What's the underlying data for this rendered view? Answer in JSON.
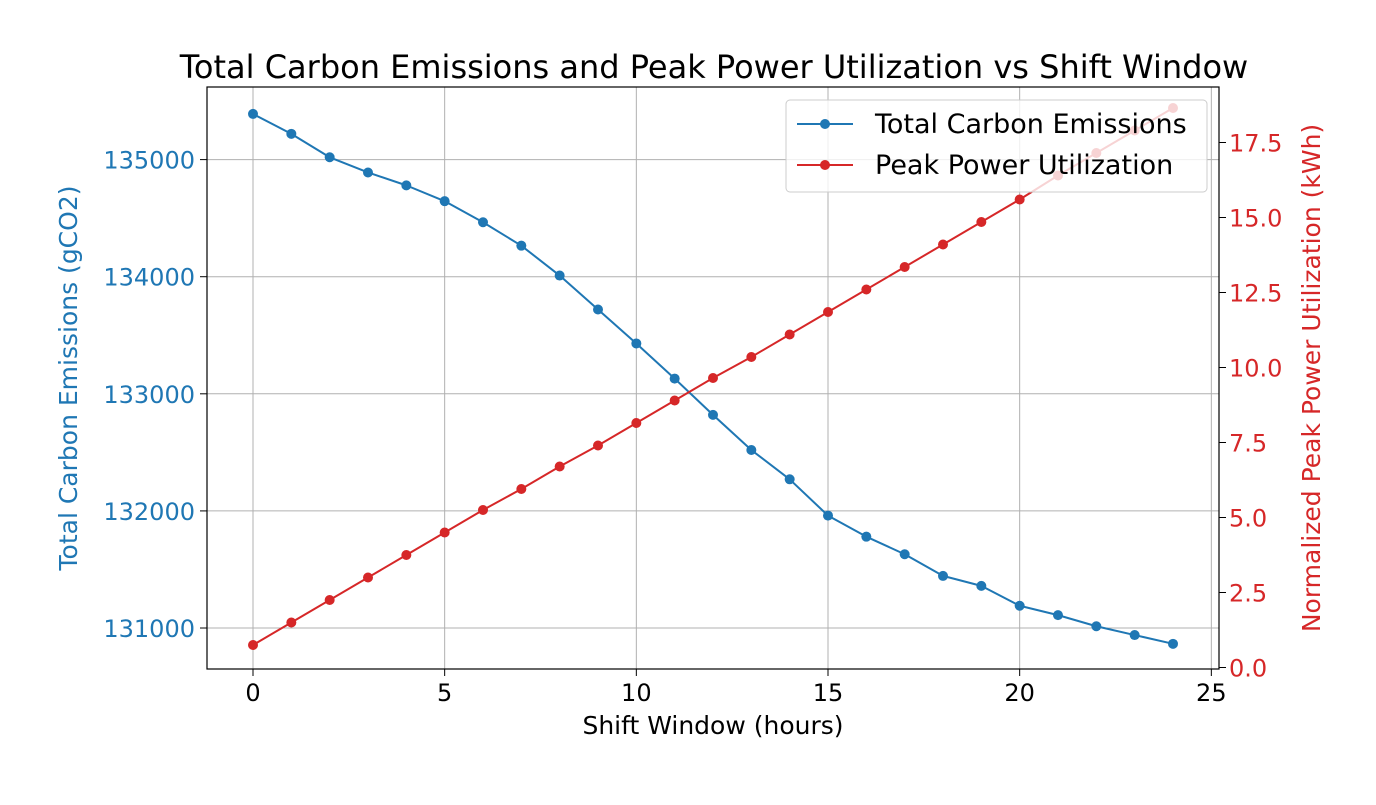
{
  "chart_data": {
    "type": "line",
    "title": "Total Carbon Emissions and Peak Power Utilization vs Shift Window",
    "xlabel": "Shift Window (hours)",
    "ylabel_left": "Total Carbon Emissions (gCO2)",
    "ylabel_right": "Normalized Peak Power Utilization (kWh)",
    "xlim": [
      -1.2,
      25.2
    ],
    "ylim_left": [
      130650,
      135620
    ],
    "ylim_right": [
      -0.05,
      19.35
    ],
    "x_ticks": [
      0,
      5,
      10,
      15,
      20,
      25
    ],
    "y_left_ticks": [
      131000,
      132000,
      133000,
      134000,
      135000
    ],
    "y_right_ticks": [
      "0.0",
      "2.5",
      "5.0",
      "7.5",
      "10.0",
      "12.5",
      "15.0",
      "17.5"
    ],
    "grid": true,
    "legend_position": "top-right",
    "x": [
      0,
      1,
      2,
      3,
      4,
      5,
      6,
      7,
      8,
      9,
      10,
      11,
      12,
      13,
      14,
      15,
      16,
      17,
      18,
      19,
      20,
      21,
      22,
      23,
      24
    ],
    "series": [
      {
        "name": "Total Carbon Emissions",
        "axis": "left",
        "color": "#1f77b4",
        "values": [
          135390,
          135220,
          135020,
          134890,
          134780,
          134645,
          134465,
          134265,
          134010,
          133720,
          133430,
          133130,
          132820,
          132520,
          132270,
          131960,
          131780,
          131630,
          131445,
          131360,
          131190,
          131110,
          131015,
          130940,
          130865
        ]
      },
      {
        "name": "Peak Power Utilization",
        "axis": "right",
        "color": "#d62728",
        "values": [
          0.75,
          1.5,
          2.25,
          3.0,
          3.75,
          4.5,
          5.25,
          5.95,
          6.7,
          7.4,
          8.15,
          8.9,
          9.65,
          10.35,
          11.1,
          11.85,
          12.6,
          13.35,
          14.1,
          14.85,
          15.6,
          16.4,
          17.15,
          17.9,
          18.65
        ]
      }
    ]
  }
}
